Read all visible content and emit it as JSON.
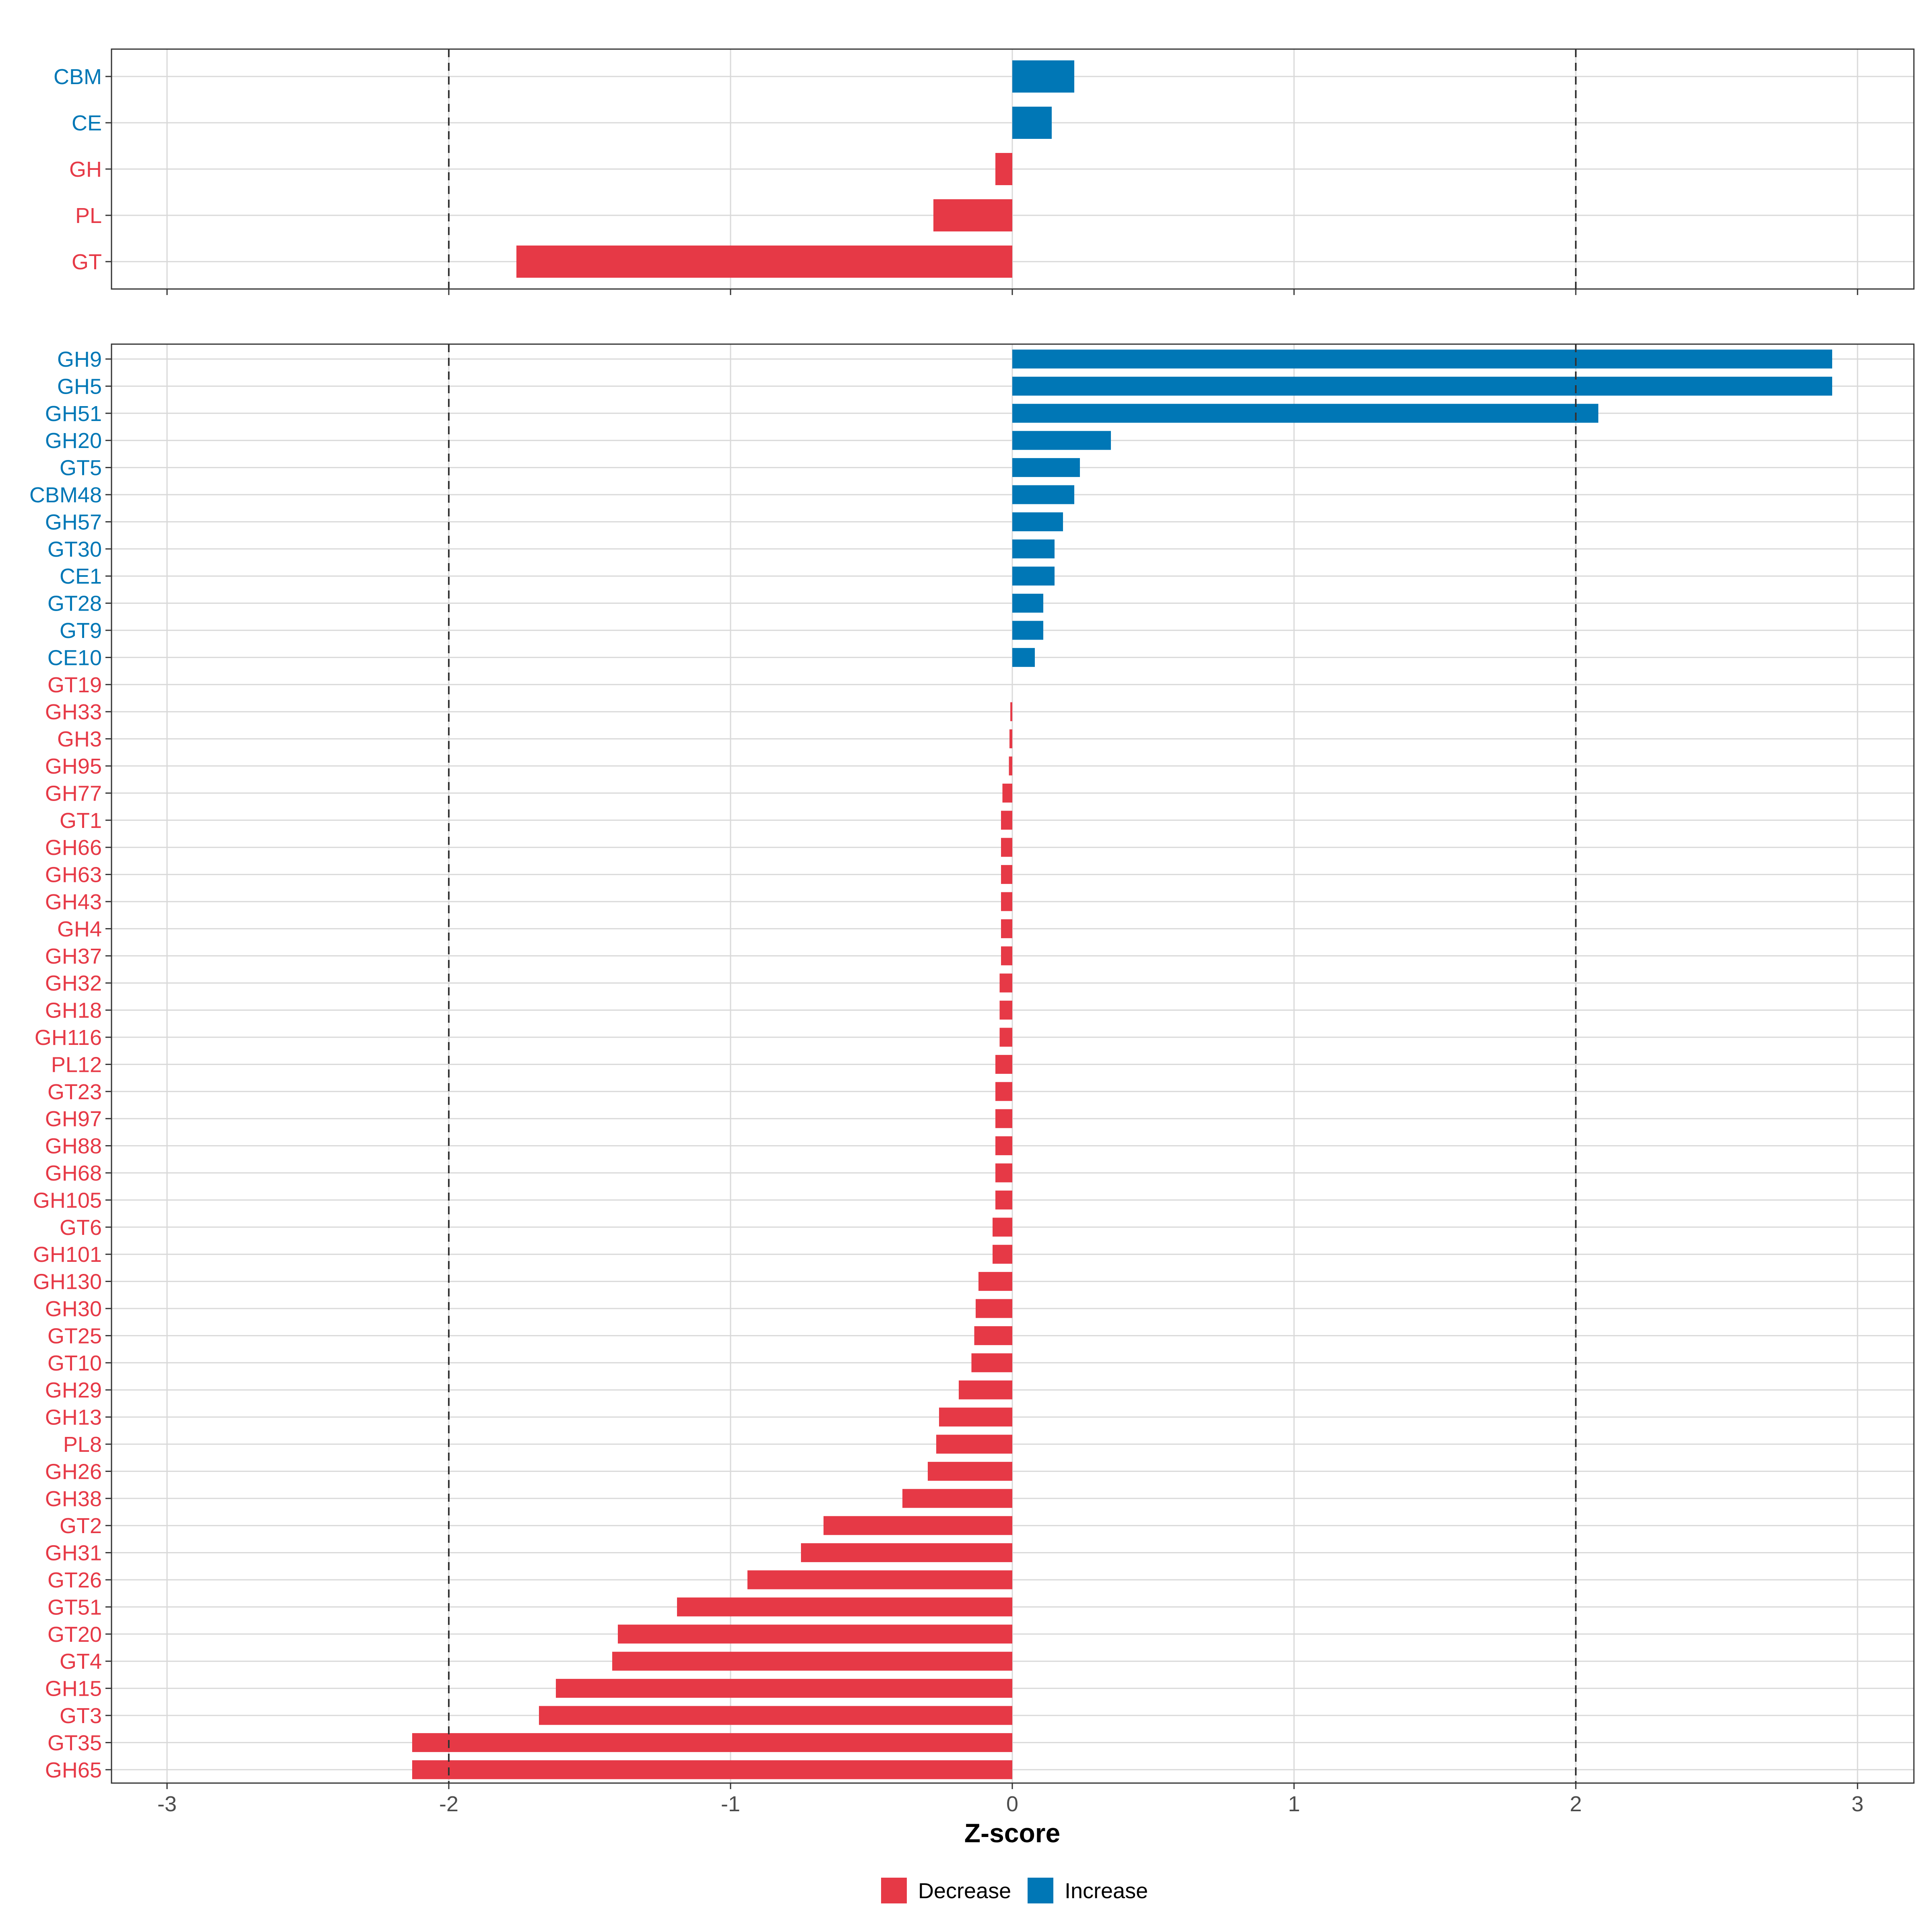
{
  "chart_data": [
    {
      "type": "bar",
      "orientation": "horizontal",
      "panel": "top",
      "categories": [
        "CBM",
        "CE",
        "GH",
        "PL",
        "GT"
      ],
      "values": [
        0.22,
        0.14,
        -0.06,
        -0.28,
        -1.76
      ],
      "direction": [
        "Increase",
        "Increase",
        "Decrease",
        "Decrease",
        "Decrease"
      ],
      "xlim": [
        -3.2,
        3.2
      ],
      "xticks": [
        -3,
        -2,
        -1,
        0,
        1,
        2,
        3
      ],
      "reference_lines": [
        -2,
        2
      ],
      "grid": true
    },
    {
      "type": "bar",
      "orientation": "horizontal",
      "panel": "bottom",
      "categories": [
        "GH9",
        "GH5",
        "GH51",
        "GH20",
        "GT5",
        "CBM48",
        "GH57",
        "GT30",
        "CE1",
        "GT28",
        "GT9",
        "CE10",
        "GT19",
        "GH33",
        "GH3",
        "GH95",
        "GH77",
        "GT1",
        "GH66",
        "GH63",
        "GH43",
        "GH4",
        "GH37",
        "GH32",
        "GH18",
        "GH116",
        "PL12",
        "GT23",
        "GH97",
        "GH88",
        "GH68",
        "GH105",
        "GT6",
        "GH101",
        "GH130",
        "GH30",
        "GT25",
        "GT10",
        "GH29",
        "GH13",
        "PL8",
        "GH26",
        "GH38",
        "GT2",
        "GH31",
        "GT26",
        "GT51",
        "GT20",
        "GT4",
        "GH15",
        "GT3",
        "GT35",
        "GH65"
      ],
      "values": [
        2.91,
        2.91,
        2.08,
        0.35,
        0.24,
        0.22,
        0.18,
        0.15,
        0.15,
        0.11,
        0.11,
        0.08,
        0.0,
        -0.007,
        -0.01,
        -0.012,
        -0.035,
        -0.04,
        -0.04,
        -0.04,
        -0.04,
        -0.04,
        -0.04,
        -0.045,
        -0.045,
        -0.045,
        -0.06,
        -0.06,
        -0.06,
        -0.06,
        -0.06,
        -0.06,
        -0.07,
        -0.07,
        -0.12,
        -0.13,
        -0.135,
        -0.145,
        -0.19,
        -0.26,
        -0.27,
        -0.3,
        -0.39,
        -0.67,
        -0.75,
        -0.94,
        -1.19,
        -1.4,
        -1.42,
        -1.62,
        -1.68,
        -2.13,
        -2.13
      ],
      "direction": [
        "Increase",
        "Increase",
        "Increase",
        "Increase",
        "Increase",
        "Increase",
        "Increase",
        "Increase",
        "Increase",
        "Increase",
        "Increase",
        "Increase",
        "Decrease",
        "Decrease",
        "Decrease",
        "Decrease",
        "Decrease",
        "Decrease",
        "Decrease",
        "Decrease",
        "Decrease",
        "Decrease",
        "Decrease",
        "Decrease",
        "Decrease",
        "Decrease",
        "Decrease",
        "Decrease",
        "Decrease",
        "Decrease",
        "Decrease",
        "Decrease",
        "Decrease",
        "Decrease",
        "Decrease",
        "Decrease",
        "Decrease",
        "Decrease",
        "Decrease",
        "Decrease",
        "Decrease",
        "Decrease",
        "Decrease",
        "Decrease",
        "Decrease",
        "Decrease",
        "Decrease",
        "Decrease",
        "Decrease",
        "Decrease",
        "Decrease",
        "Decrease",
        "Decrease"
      ],
      "xlim": [
        -3.2,
        3.2
      ],
      "xticks": [
        -3,
        -2,
        -1,
        0,
        1,
        2,
        3
      ],
      "xtick_labels": [
        "-3",
        "-2",
        "-1",
        "0",
        "1",
        "2",
        "3"
      ],
      "xlabel": "Z-score",
      "reference_lines": [
        -2,
        2
      ],
      "grid": true
    }
  ],
  "legend": {
    "position": "bottom",
    "items": [
      {
        "label": "Decrease",
        "color": "#e63946"
      },
      {
        "label": "Increase",
        "color": "#0077b6"
      }
    ]
  },
  "colors": {
    "Decrease": "#e63946",
    "Increase": "#0077b6",
    "grid": "#d9d9d9",
    "panel_border": "#333333",
    "reference_line": "#333333"
  }
}
